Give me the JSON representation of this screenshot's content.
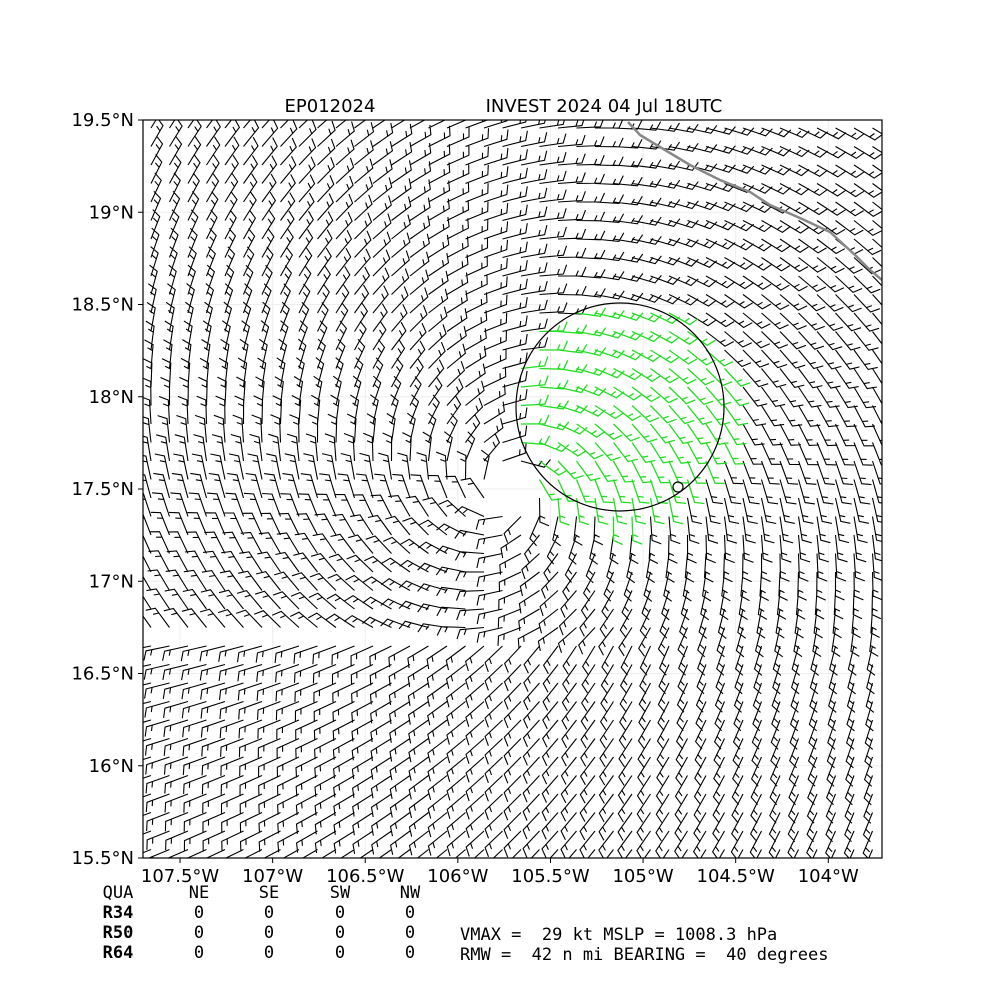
{
  "chart_data": {
    "type": "wind-barb",
    "title": "EP012024",
    "subtitle": "INVEST 2024 04 Jul 18UTC",
    "xlim": [
      -107.7,
      -103.71
    ],
    "ylim": [
      15.5,
      19.5
    ],
    "xticks": [
      {
        "value": -107.5,
        "label": "107.5°W"
      },
      {
        "value": -107,
        "label": "107°W"
      },
      {
        "value": -106.5,
        "label": "106.5°W"
      },
      {
        "value": -106,
        "label": "106°W"
      },
      {
        "value": -105.5,
        "label": "105.5°W"
      },
      {
        "value": -105,
        "label": "105°W"
      },
      {
        "value": -104.5,
        "label": "104.5°W"
      },
      {
        "value": -104,
        "label": "104°W"
      }
    ],
    "yticks": [
      {
        "value": 15.5,
        "label": "15.5°N"
      },
      {
        "value": 16,
        "label": "16°N"
      },
      {
        "value": 16.5,
        "label": "16.5°N"
      },
      {
        "value": 17,
        "label": "17°N"
      },
      {
        "value": 17.5,
        "label": "17.5°N"
      },
      {
        "value": 18,
        "label": "18°N"
      },
      {
        "value": 18.5,
        "label": "18.5°N"
      },
      {
        "value": 19,
        "label": "19°N"
      },
      {
        "value": 19.5,
        "label": "19.5°N"
      }
    ],
    "grid": true
  },
  "wind_radii": {
    "header": [
      "QUA",
      "NE",
      "SE",
      "SW",
      "NW"
    ],
    "rows": [
      [
        "R34",
        0,
        0,
        0,
        0
      ],
      [
        "R50",
        0,
        0,
        0,
        0
      ],
      [
        "R64",
        0,
        0,
        0,
        0
      ]
    ]
  },
  "storm_info": [
    "VMAX =  29 kt MSLP = 1008.3 hPa",
    "RMW =  42 n mi BEARING =  40 degrees"
  ]
}
